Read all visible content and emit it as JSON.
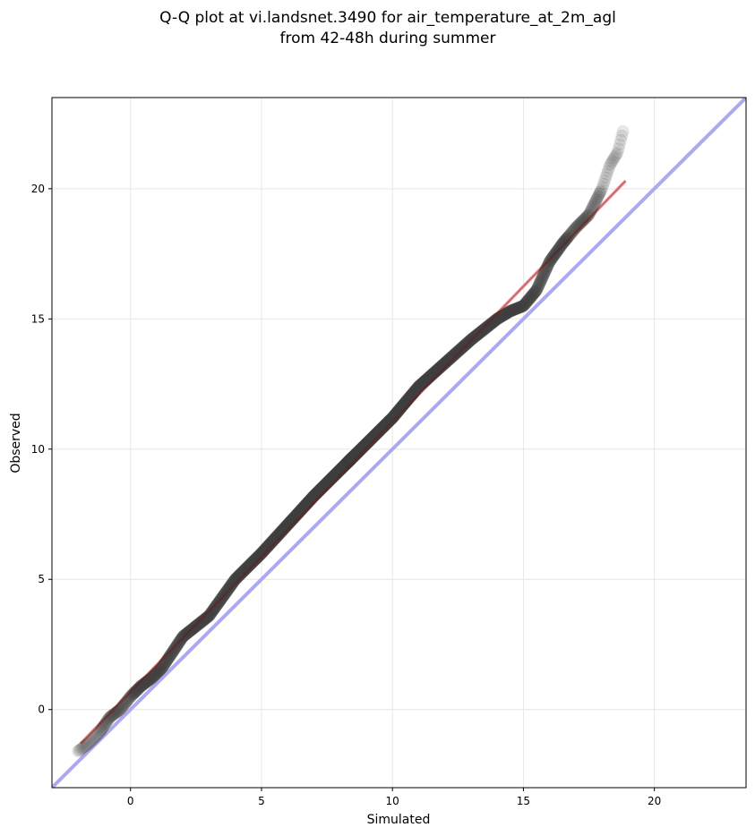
{
  "chart_data": {
    "type": "scatter",
    "title": [
      "Q-Q plot at vi.landsnet.3490 for air_temperature_at_2m_agl",
      "from 42-48h during summer"
    ],
    "xlabel": "Simulated",
    "ylabel": "Observed",
    "xlim": [
      -3.0,
      23.5
    ],
    "ylim": [
      -3.0,
      23.5
    ],
    "xticks": [
      0,
      5,
      10,
      15,
      20
    ],
    "yticks": [
      0,
      5,
      10,
      15,
      20
    ],
    "grid": true,
    "legend": "none",
    "colors": {
      "points": "#404040",
      "identity_line": "#aaaaf0",
      "fit_line": "#f0a0a0",
      "fit_line_dark": "#8b0000"
    },
    "reference_lines": [
      {
        "kind": "identity",
        "x": [
          -3.0,
          23.5
        ],
        "y": [
          -3.0,
          23.5
        ]
      },
      {
        "kind": "fit",
        "x": [
          -1.9,
          18.9
        ],
        "y": [
          -1.3,
          20.3
        ]
      }
    ],
    "quantiles_curve": {
      "x": [
        -2.0,
        -1.6,
        -1.2,
        -0.8,
        -0.4,
        0.0,
        0.4,
        0.8,
        1.2,
        1.6,
        2.0,
        2.5,
        3.0,
        3.5,
        4.0,
        5.0,
        6.0,
        7.0,
        8.0,
        9.0,
        10.0,
        11.0,
        12.0,
        13.0,
        14.0,
        14.5,
        15.0,
        15.5,
        16.0,
        16.5,
        17.0,
        17.5,
        18.0,
        18.3,
        18.6,
        18.8
      ],
      "y": [
        -1.6,
        -1.3,
        -0.9,
        -0.3,
        0.0,
        0.5,
        0.9,
        1.2,
        1.6,
        2.2,
        2.8,
        3.2,
        3.6,
        4.3,
        5.0,
        6.0,
        7.1,
        8.2,
        9.2,
        10.2,
        11.2,
        12.4,
        13.3,
        14.2,
        15.0,
        15.3,
        15.5,
        16.1,
        17.2,
        17.9,
        18.5,
        19.0,
        20.0,
        20.9,
        21.4,
        22.2
      ]
    }
  }
}
